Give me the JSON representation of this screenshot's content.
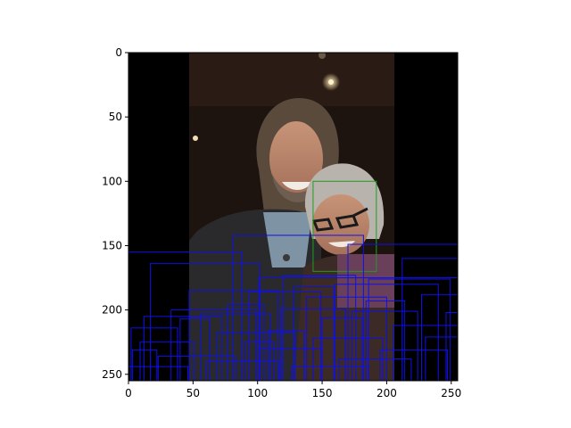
{
  "chart_data": {
    "type": "image_with_bounding_boxes",
    "x_ticks": [
      0,
      50,
      100,
      150,
      200,
      250
    ],
    "y_ticks": [
      0,
      50,
      100,
      150,
      200,
      250
    ],
    "xlim": [
      0,
      255
    ],
    "ylim": [
      255,
      0
    ],
    "image": {
      "subject": "photo of a bearded man and a woman with glasses smiling together at a dark indoor event",
      "photo_x_range": [
        47,
        207
      ]
    },
    "highlight_box": {
      "color": "#1f9e1f",
      "x0": 143,
      "y0": 100,
      "x1": 192,
      "y1": 170
    },
    "boxes": [
      [
        81,
        142,
        182,
        255
      ],
      [
        0,
        155,
        88,
        255
      ],
      [
        17,
        164,
        102,
        255
      ],
      [
        170,
        149,
        255,
        255
      ],
      [
        212,
        160,
        255,
        255
      ],
      [
        101,
        175,
        255,
        255
      ],
      [
        47,
        185,
        116,
        255
      ],
      [
        120,
        173,
        176,
        255
      ],
      [
        160,
        180,
        240,
        255
      ],
      [
        12,
        205,
        72,
        255
      ],
      [
        33,
        200,
        99,
        255
      ],
      [
        93,
        186,
        149,
        255
      ],
      [
        138,
        190,
        200,
        255
      ],
      [
        186,
        176,
        249,
        255
      ],
      [
        2,
        214,
        38,
        255
      ],
      [
        56,
        203,
        110,
        255
      ],
      [
        118,
        199,
        168,
        255
      ],
      [
        173,
        201,
        224,
        255
      ],
      [
        227,
        188,
        255,
        255
      ],
      [
        9,
        225,
        51,
        255
      ],
      [
        68,
        218,
        129,
        255
      ],
      [
        143,
        222,
        197,
        255
      ],
      [
        205,
        212,
        255,
        255
      ],
      [
        23,
        236,
        83,
        255
      ],
      [
        101,
        230,
        150,
        255
      ],
      [
        163,
        238,
        219,
        255
      ],
      [
        0,
        244,
        46,
        255
      ],
      [
        126,
        244,
        186,
        255
      ],
      [
        60,
        240,
        117,
        255
      ],
      [
        195,
        231,
        247,
        255
      ],
      [
        40,
        207,
        63,
        255
      ],
      [
        150,
        206,
        181,
        255
      ],
      [
        108,
        216,
        136,
        255
      ],
      [
        230,
        221,
        255,
        255
      ],
      [
        77,
        196,
        105,
        255
      ],
      [
        184,
        193,
        214,
        255
      ],
      [
        3,
        231,
        22,
        255
      ],
      [
        246,
        202,
        255,
        255
      ],
      [
        128,
        182,
        159,
        255
      ],
      [
        90,
        225,
        113,
        255
      ]
    ]
  }
}
